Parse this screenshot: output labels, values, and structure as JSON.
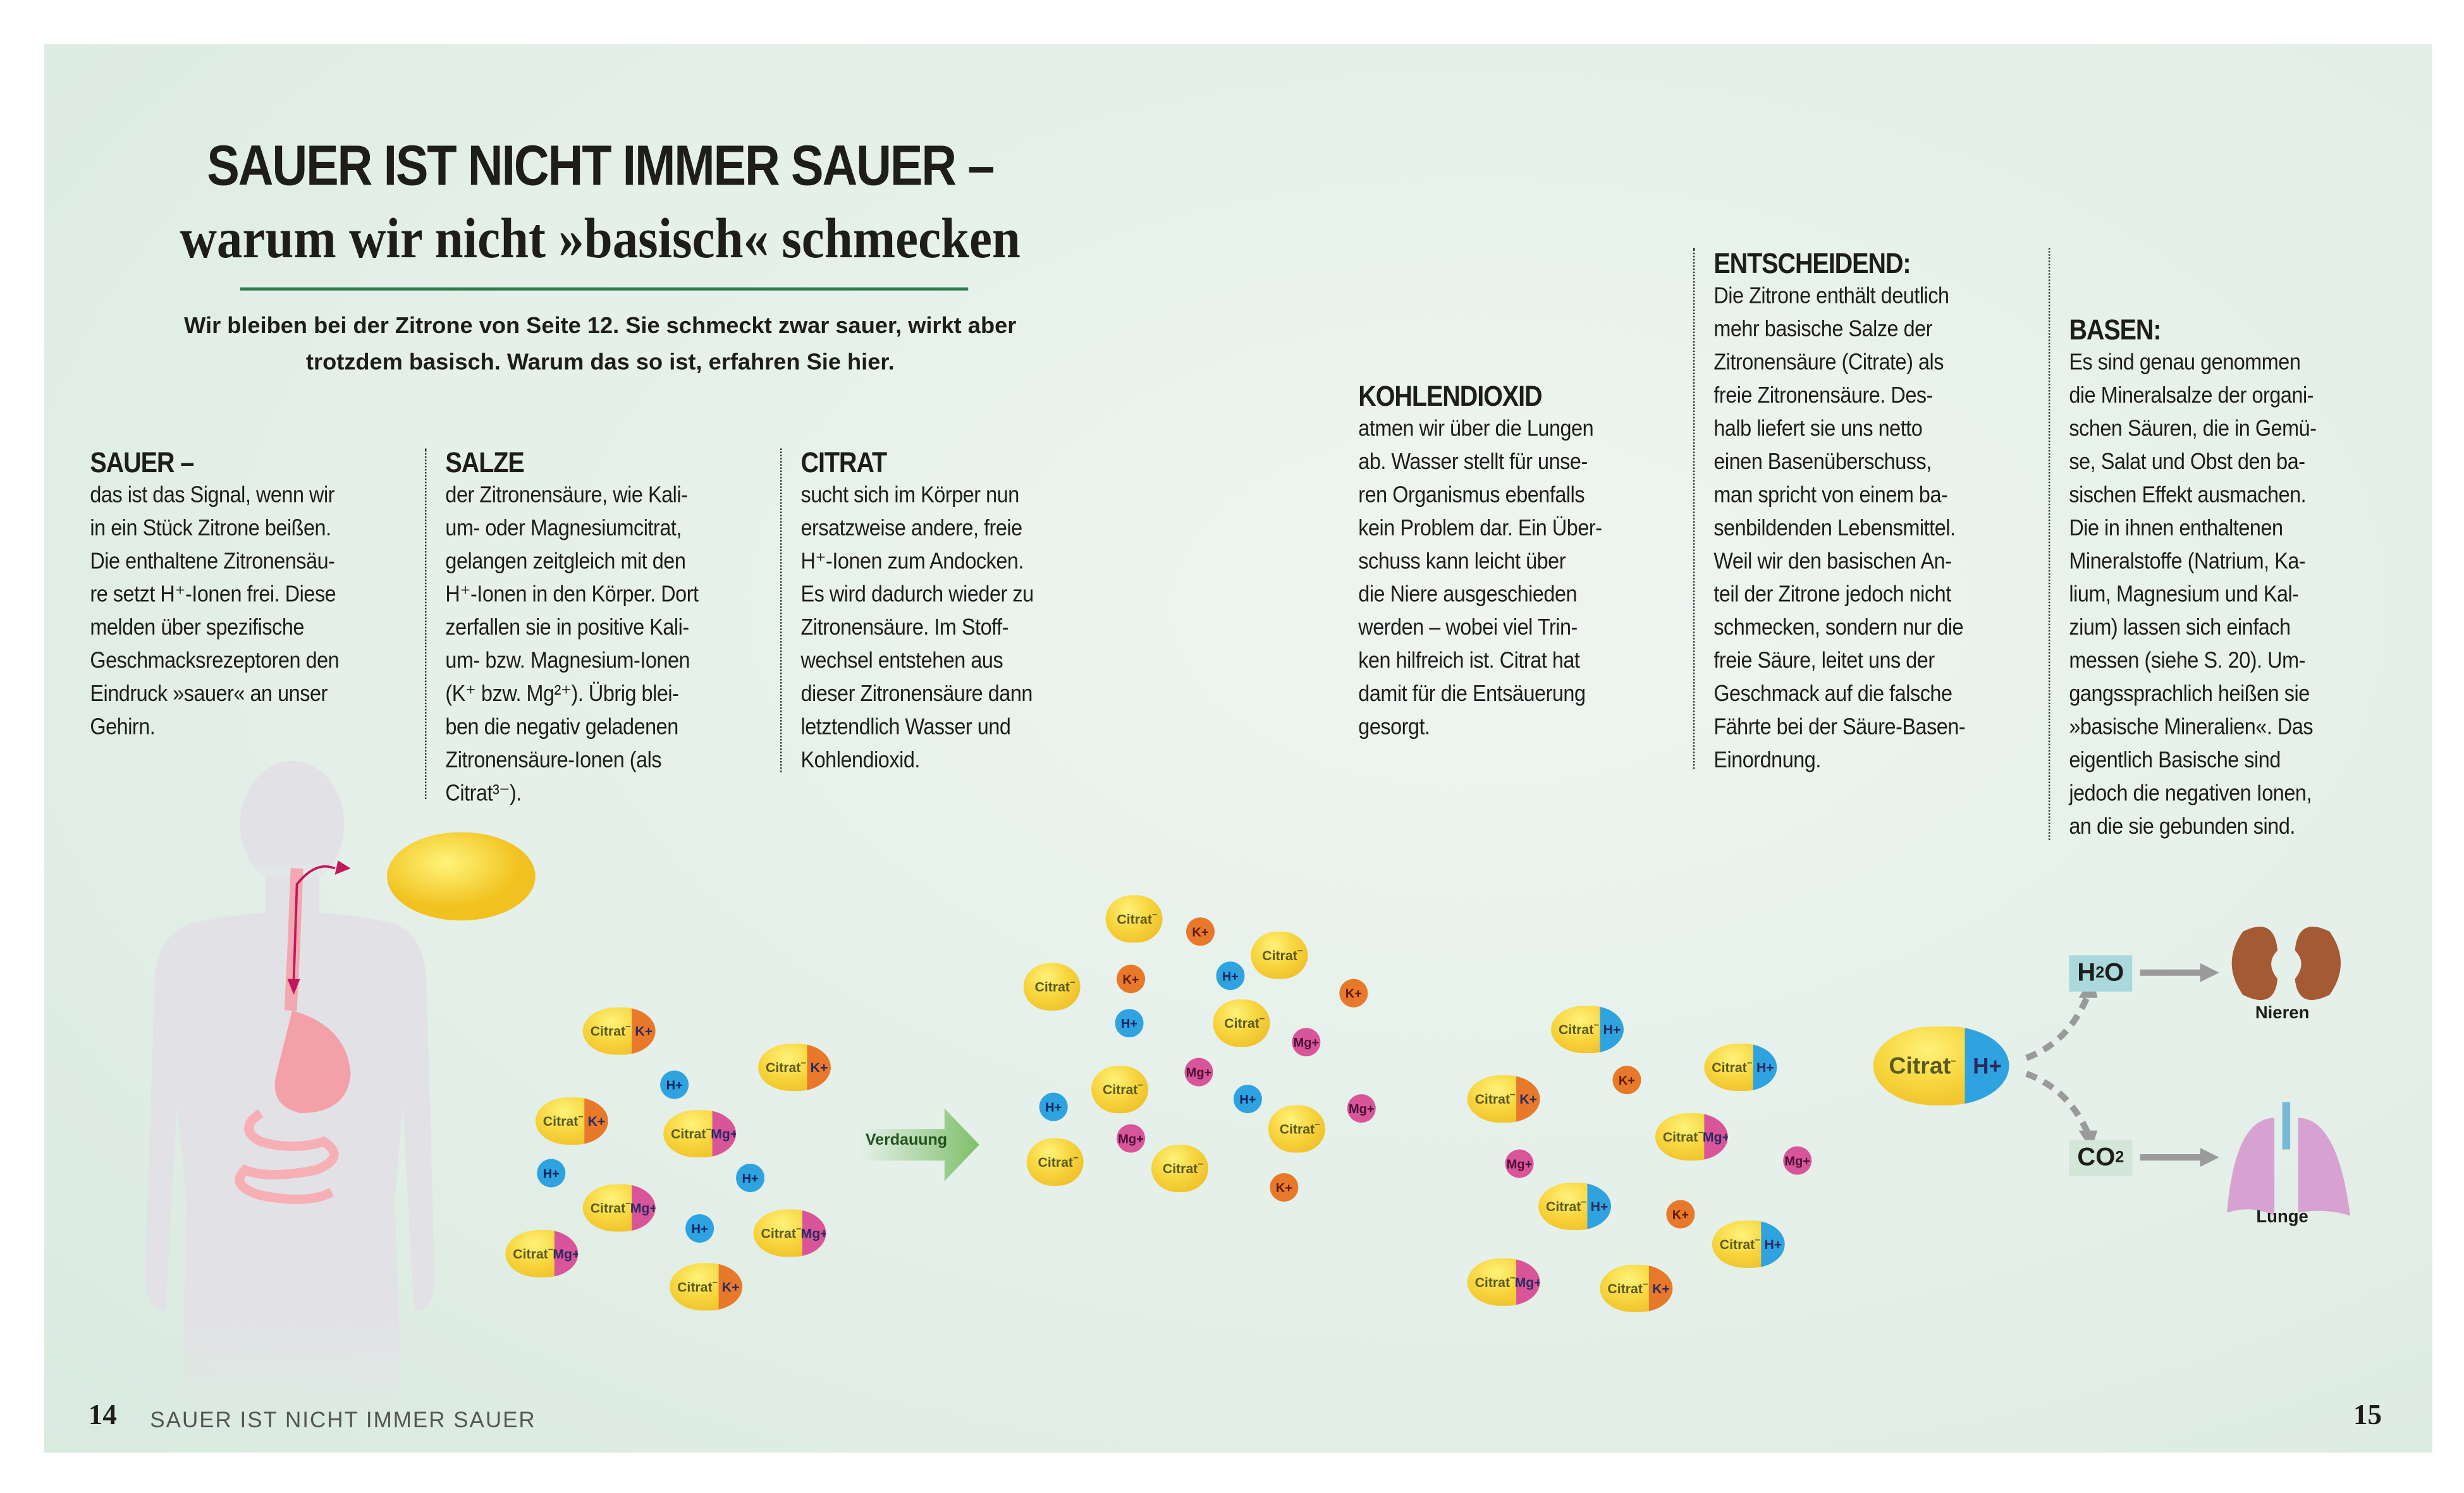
{
  "header": {
    "title_line1": "SAUER IST NICHT IMMER SAUER –",
    "title_line2": "warum wir nicht »basisch« schmecken",
    "intro_lines": [
      "Wir bleiben bei der Zitrone von Seite 12. Sie schmeckt zwar sauer, wirkt aber",
      "trotzdem basisch. Warum das so ist, erfahren Sie hier."
    ]
  },
  "columns": [
    {
      "heading": "SAUER –",
      "lines": [
        "das ist das Signal, wenn wir",
        "in ein Stück Zitrone beißen.",
        "Die enthaltene Zitronensäu-",
        "re setzt H⁺-Ionen frei. Diese",
        "melden über spezifische",
        "Geschmacksrezeptoren den",
        "Eindruck »sauer« an unser",
        "Gehirn."
      ]
    },
    {
      "heading": "SALZE",
      "lines": [
        "der Zitronensäure, wie Kali-",
        "um- oder Magnesiumcitrat,",
        "gelangen zeitgleich mit den",
        "H⁺-Ionen in den Körper. Dort",
        "zerfallen sie in positive Kali-",
        "um- bzw. Magnesium-Ionen",
        "(K⁺ bzw. Mg²⁺). Übrig blei-",
        "ben die negativ geladenen",
        "Zitronensäure-Ionen (als",
        "Citrat³⁻)."
      ]
    },
    {
      "heading": "CITRAT",
      "lines": [
        "sucht sich im Körper nun",
        "ersatzweise andere, freie",
        "H⁺-Ionen zum Andocken.",
        "Es wird dadurch wieder zu",
        "Zitronensäure. Im Stoff-",
        "wechsel entstehen aus",
        "dieser Zitronensäure dann",
        "letztendlich Wasser und",
        "Kohlendioxid."
      ]
    },
    {
      "heading": "KOHLENDIOXID",
      "lines": [
        "atmen wir über die Lungen",
        "ab. Wasser stellt für unse-",
        "ren Organismus ebenfalls",
        "kein Problem dar. Ein Über-",
        "schuss kann leicht über",
        "die Niere ausgeschieden",
        "werden – wobei viel Trin-",
        "ken hilfreich ist. Citrat hat",
        "damit für die Entsäuerung",
        "gesorgt."
      ]
    },
    {
      "heading": "ENTSCHEIDEND:",
      "lines": [
        "Die Zitrone enthält deutlich",
        "mehr basische Salze der",
        "Zitronensäure (Citrate) als",
        "freie Zitronensäure. Des-",
        "halb liefert sie uns netto",
        "einen Basenüberschuss,",
        "man spricht von einem ba-",
        "senbildenden Lebensmittel.",
        "Weil wir den basischen An-",
        "teil der Zitrone jedoch nicht",
        "schmecken, sondern nur die",
        "freie Säure, leitet uns der",
        "Geschmack auf die falsche",
        "Fährte bei der Säure-Basen-",
        "Einordnung."
      ]
    },
    {
      "heading": "BASEN:",
      "lines": [
        "Es sind genau genommen",
        "die Mineralsalze der organi-",
        "schen Säuren, die in Gemü-",
        "se, Salat und Obst den ba-",
        "sischen Effekt ausmachen.",
        "Die in ihnen enthaltenen",
        "Mineralstoffe (Natrium, Ka-",
        "lium, Magnesium und Kal-",
        "zium) lassen sich einfach",
        "messen (siehe S. 20). Um-",
        "gangssprachlich heißen sie",
        "»basische Mineralien«. Das",
        "eigentlich Basische sind",
        "jedoch die negativen Ionen,",
        "an die sie gebunden sind."
      ]
    }
  ],
  "diagram": {
    "citrate_label": "Citrat",
    "citrate_charge": "−",
    "before_digestion": [
      "K+",
      "K+",
      "H+ion",
      "K+",
      "Mg+",
      "H+ion",
      "H+ion",
      "Mg+",
      "H+ion",
      "Mg+",
      "Mg+",
      "K+"
    ],
    "digestion_label": "Verdauung",
    "after_digestion": [
      "C",
      "K+ion",
      "C",
      "C",
      "K+ion",
      "H+ion",
      "K+ion",
      "H+ion",
      "C",
      "Mg+ion",
      "Mg+ion",
      "C",
      "H+ion",
      "H+ion",
      "Mg+ion",
      "C",
      "Mg+ion",
      "C",
      "C",
      "K+ion"
    ],
    "recombined": [
      "H+",
      "K+ion",
      "H+",
      "K+",
      "Mg+",
      "Mg+ion",
      "Mg+ion",
      "H+",
      "K+ion",
      "H+",
      "Mg+",
      "K+"
    ],
    "big_molecule_ion": "H+",
    "products": [
      {
        "formula": "H",
        "sub": "2",
        "tail": "O",
        "color": "#a9d9dd",
        "organ": "Nieren"
      },
      {
        "formula": "CO",
        "sub": "2",
        "tail": "",
        "color": "#d3e6d8",
        "organ": "Lunge"
      }
    ],
    "colors": {
      "citrate": "#f5cf3a",
      "potassium": "#e8792a",
      "magnesium": "#d9559a",
      "hydrogen": "#2ea3e0",
      "arrow": "#7fbf6a"
    }
  },
  "footer": {
    "left_page": "14",
    "running_title": "SAUER IST NICHT IMMER SAUER",
    "right_page": "15"
  }
}
